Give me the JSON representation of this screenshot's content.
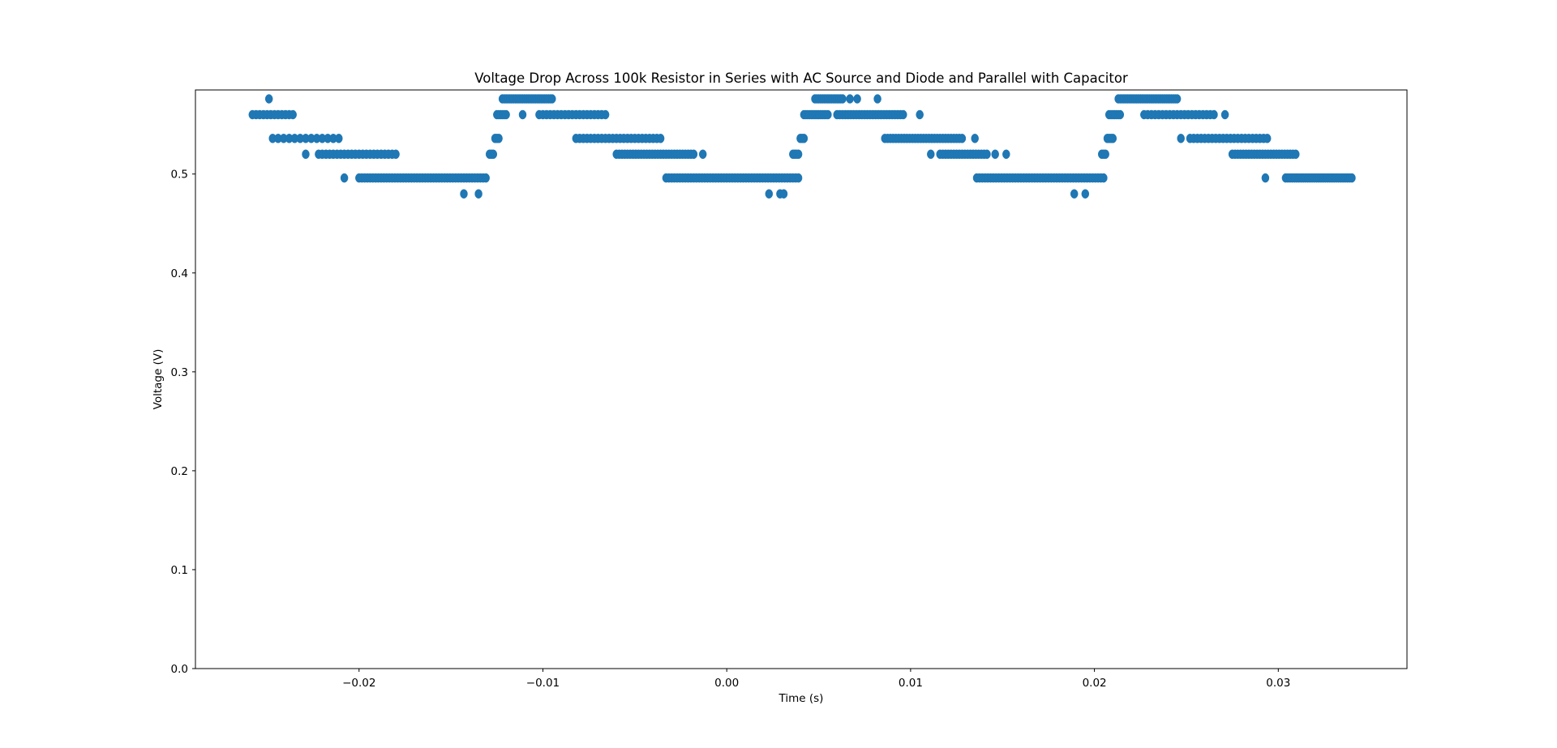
{
  "chart_data": {
    "type": "scatter",
    "title": "Voltage Drop Across 100k Resistor in Series with AC Source and Diode and Parallel with Capacitor",
    "xlabel": "Time (s)",
    "ylabel": "Voltage (V)",
    "xlim": [
      -0.0289,
      0.037
    ],
    "ylim": [
      0.0,
      0.585
    ],
    "xticks": [
      -0.02,
      -0.01,
      0.0,
      0.01,
      0.02,
      0.03
    ],
    "xtick_labels": [
      "−0.02",
      "−0.01",
      "0.00",
      "0.01",
      "0.02",
      "0.03"
    ],
    "yticks": [
      0.0,
      0.1,
      0.2,
      0.3,
      0.4,
      0.5
    ],
    "ytick_labels": [
      "0.0",
      "0.1",
      "0.2",
      "0.3",
      "0.4",
      "0.5"
    ],
    "grid": false,
    "legend": "none",
    "marker_color": "#1f77b4",
    "series": [
      {
        "segments": [
          {
            "y": 0.576,
            "x": [
              -0.0249
            ]
          },
          {
            "y": 0.56,
            "x_range": [
              -0.0258,
              -0.0235
            ],
            "step": 0.0002
          },
          {
            "y": 0.536,
            "x_range": [
              -0.0247,
              -0.021
            ],
            "step": 0.0003
          },
          {
            "y": 0.52,
            "x": [
              -0.0229
            ]
          },
          {
            "y": 0.52,
            "x_range": [
              -0.0222,
              -0.018
            ],
            "step": 0.0002
          },
          {
            "y": 0.496,
            "x": [
              -0.0208
            ]
          },
          {
            "y": 0.496,
            "x_range": [
              -0.02,
              -0.013
            ],
            "step": 0.00015
          },
          {
            "y": 0.48,
            "x": [
              -0.0143,
              -0.0135
            ]
          },
          {
            "y": 0.52,
            "x_range": [
              -0.0129,
              -0.0127
            ],
            "step": 0.0001
          },
          {
            "y": 0.536,
            "x_range": [
              -0.0126,
              -0.0124
            ],
            "step": 0.0001
          },
          {
            "y": 0.56,
            "x_range": [
              -0.0125,
              -0.012
            ],
            "step": 0.0001
          },
          {
            "y": 0.576,
            "x_range": [
              -0.0122,
              -0.0095
            ],
            "step": 0.0001
          },
          {
            "y": 0.56,
            "x": [
              -0.0111
            ]
          },
          {
            "y": 0.56,
            "x_range": [
              -0.0102,
              -0.0065
            ],
            "step": 0.0002
          },
          {
            "y": 0.536,
            "x_range": [
              -0.0082,
              -0.0035
            ],
            "step": 0.0002
          },
          {
            "y": 0.52,
            "x_range": [
              -0.006,
              -0.0018
            ],
            "step": 0.00015
          },
          {
            "y": 0.52,
            "x": [
              -0.0013
            ]
          },
          {
            "y": 0.496,
            "x_range": [
              -0.0033,
              0.004
            ],
            "step": 0.00015
          },
          {
            "y": 0.48,
            "x": [
              0.0023,
              0.0029,
              0.0031
            ]
          },
          {
            "y": 0.52,
            "x_range": [
              0.0036,
              0.0039
            ],
            "step": 0.0001
          },
          {
            "y": 0.536,
            "x_range": [
              0.004,
              0.0042
            ],
            "step": 0.0001
          },
          {
            "y": 0.56,
            "x_range": [
              0.0042,
              0.0055
            ],
            "step": 0.0001
          },
          {
            "y": 0.576,
            "x_range": [
              0.0048,
              0.0063
            ],
            "step": 0.0001
          },
          {
            "y": 0.576,
            "x": [
              0.0067,
              0.0071,
              0.0082
            ]
          },
          {
            "y": 0.56,
            "x_range": [
              0.006,
              0.0097
            ],
            "step": 0.00015
          },
          {
            "y": 0.56,
            "x": [
              0.0105
            ]
          },
          {
            "y": 0.536,
            "x_range": [
              0.0086,
              0.0128
            ],
            "step": 0.00015
          },
          {
            "y": 0.536,
            "x": [
              0.0135
            ]
          },
          {
            "y": 0.52,
            "x": [
              0.0111
            ]
          },
          {
            "y": 0.52,
            "x_range": [
              0.0116,
              0.0142
            ],
            "step": 0.00015
          },
          {
            "y": 0.52,
            "x": [
              0.0146,
              0.0152
            ]
          },
          {
            "y": 0.496,
            "x_range": [
              0.0136,
              0.0205
            ],
            "step": 0.00015
          },
          {
            "y": 0.48,
            "x": [
              0.0189,
              0.0195
            ]
          },
          {
            "y": 0.52,
            "x_range": [
              0.0204,
              0.0206
            ],
            "step": 0.0001
          },
          {
            "y": 0.536,
            "x_range": [
              0.0207,
              0.021
            ],
            "step": 0.0001
          },
          {
            "y": 0.56,
            "x_range": [
              0.0208,
              0.0214
            ],
            "step": 0.0001
          },
          {
            "y": 0.576,
            "x_range": [
              0.0213,
              0.0245
            ],
            "step": 0.0001
          },
          {
            "y": 0.56,
            "x_range": [
              0.0227,
              0.0265
            ],
            "step": 0.0002
          },
          {
            "y": 0.56,
            "x": [
              0.0271
            ]
          },
          {
            "y": 0.536,
            "x": [
              0.0247
            ]
          },
          {
            "y": 0.536,
            "x_range": [
              0.0252,
              0.0295
            ],
            "step": 0.0002
          },
          {
            "y": 0.52,
            "x_range": [
              0.0275,
              0.031
            ],
            "step": 0.00015
          },
          {
            "y": 0.496,
            "x": [
              0.0293
            ]
          },
          {
            "y": 0.496,
            "x_range": [
              0.0304,
              0.034
            ],
            "step": 0.00012
          }
        ]
      }
    ]
  }
}
